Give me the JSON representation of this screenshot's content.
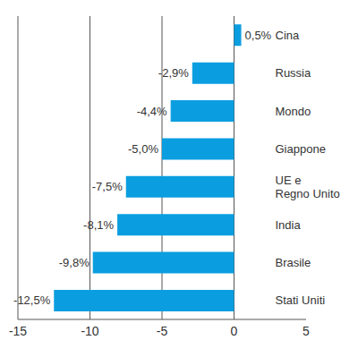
{
  "chart_data": {
    "type": "bar",
    "orientation": "horizontal",
    "categories": [
      "Cina",
      "Russia",
      "Mondo",
      "Giappone",
      "UE e Regno Unito",
      "India",
      "Brasile",
      "Stati Uniti"
    ],
    "values": [
      0.5,
      -2.9,
      -4.4,
      -5.0,
      -7.5,
      -8.1,
      -9.8,
      -12.5
    ],
    "value_labels": [
      "0,5%",
      "-2,9%",
      "-4,4%",
      "-5,0%",
      "-7,5%",
      "-8,1%",
      "-9,8%",
      "-12,5%"
    ],
    "color": "#0a9ee0",
    "xlim": [
      -15,
      5
    ],
    "xticks": [
      -15,
      -10,
      -5,
      0,
      5
    ],
    "grid": true,
    "data_labels": true
  }
}
